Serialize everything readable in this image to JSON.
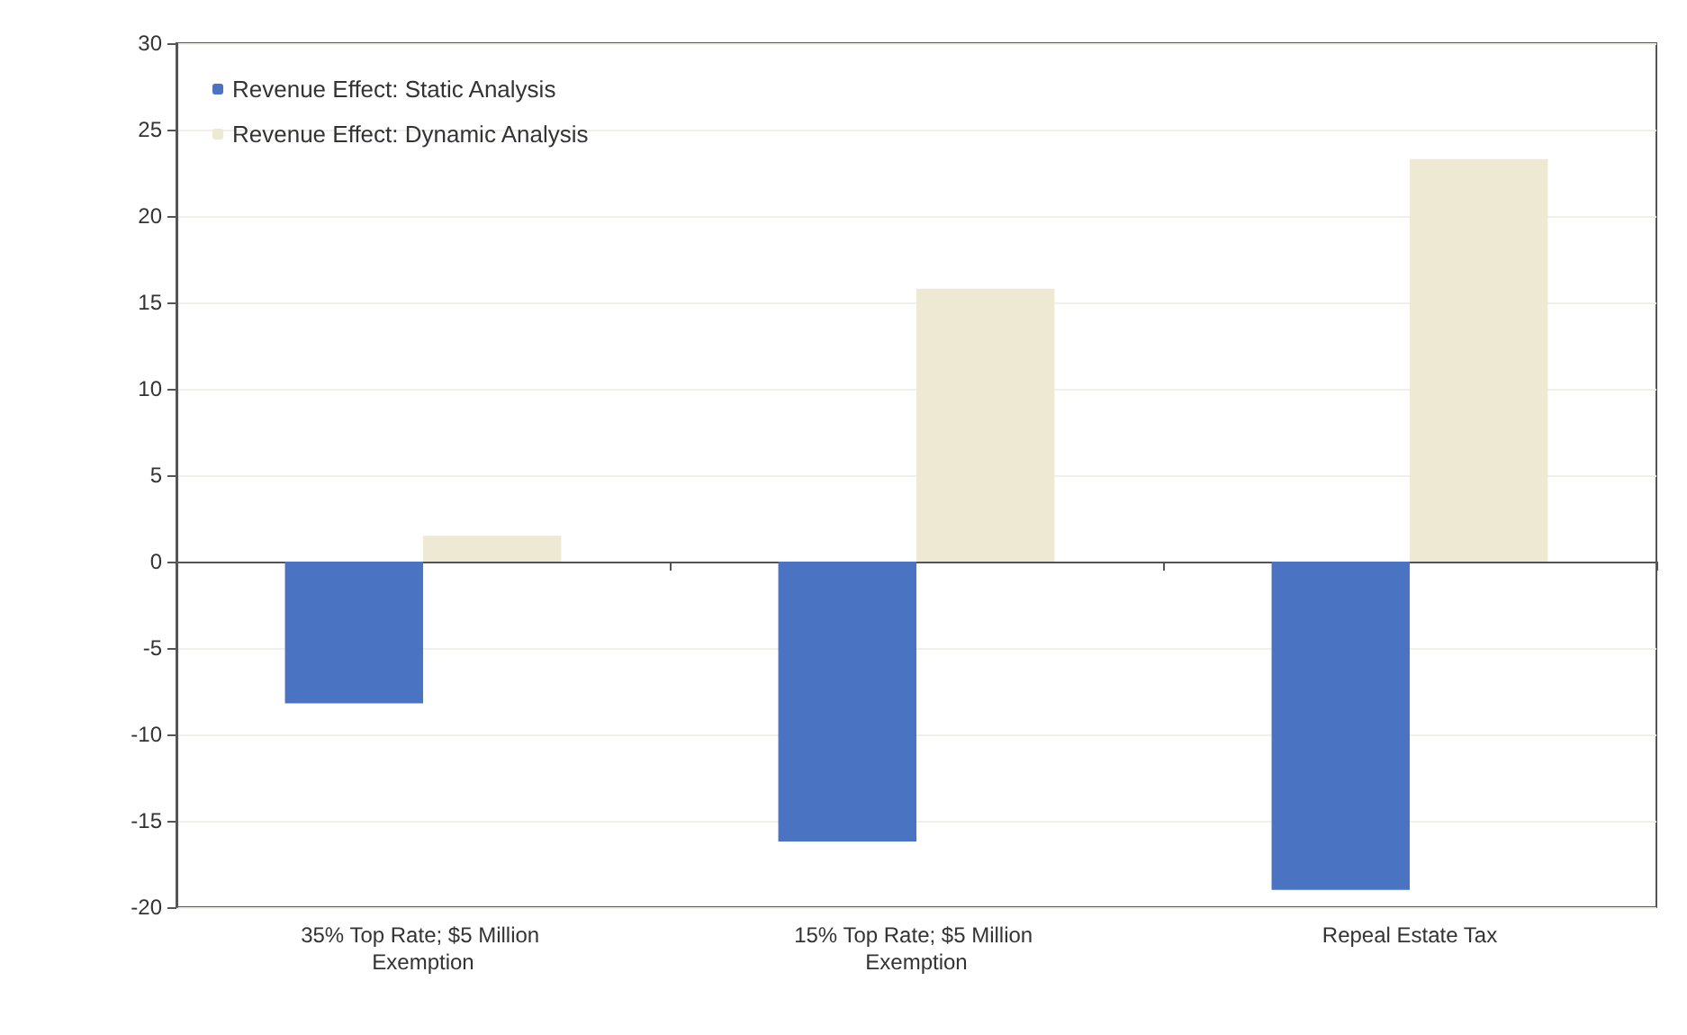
{
  "chart_data": {
    "type": "bar",
    "categories": [
      "35% Top Rate; $5 Million Exemption",
      "15% Top Rate; $5 Million Exemption",
      "Repeal Estate Tax"
    ],
    "series": [
      {
        "name": "Revenue Effect: Static Analysis",
        "color": "#4a74c2",
        "values": [
          -8.2,
          -16.2,
          -19
        ]
      },
      {
        "name": "Revenue Effect: Dynamic Analysis",
        "color": "#eee9d3",
        "values": [
          1.5,
          15.8,
          23.3
        ]
      }
    ],
    "ylim": [
      -20,
      30
    ],
    "yticks": [
      -20,
      -15,
      -10,
      -5,
      0,
      5,
      10,
      15,
      20,
      25,
      30
    ],
    "grid": "y",
    "legend": "top left"
  }
}
